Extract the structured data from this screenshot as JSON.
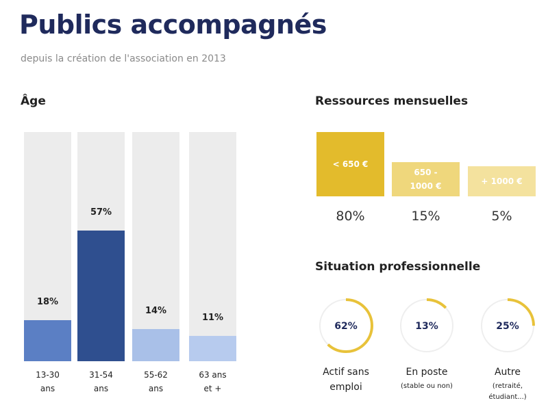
{
  "title": "Publics accompagnés",
  "subtitle": "depuis la création de l'association en 2013",
  "chart_data": [
    {
      "type": "bar",
      "title": "Âge",
      "categories": [
        "13-30 ans",
        "31-54 ans",
        "55-62 ans",
        "63 ans et +"
      ],
      "values": [
        18,
        57,
        14,
        11
      ],
      "value_labels": [
        "18%",
        "57%",
        "14%",
        "11%"
      ],
      "colors": [
        "#5b7fc4",
        "#2f4f8f",
        "#a9c0e8",
        "#b7cbee"
      ],
      "track_color": "#ececec",
      "ylim": [
        0,
        100
      ]
    },
    {
      "type": "block",
      "title": "Ressources mensuelles",
      "categories": [
        "< 650 €",
        "650 - 1000 €",
        "+ 1000 €"
      ],
      "values": [
        80,
        15,
        5
      ],
      "value_labels": [
        "80%",
        "15%",
        "5%"
      ],
      "colors": [
        "#e3bb2c",
        "#efd77c",
        "#f4e29e"
      ],
      "ylim": [
        -60,
        80
      ]
    },
    {
      "type": "ring",
      "title": "Situation professionnelle",
      "categories": [
        "Actif sans emploi",
        "En poste",
        "Autre"
      ],
      "sublabels": [
        null,
        "(stable ou non)",
        "(retraité, étudiant...)"
      ],
      "values": [
        62,
        13,
        25
      ],
      "value_labels": [
        "62%",
        "13%",
        "25%"
      ],
      "color": "#e8c23a",
      "track_color": "#eeeeee",
      "ylim": [
        0,
        100
      ]
    }
  ]
}
